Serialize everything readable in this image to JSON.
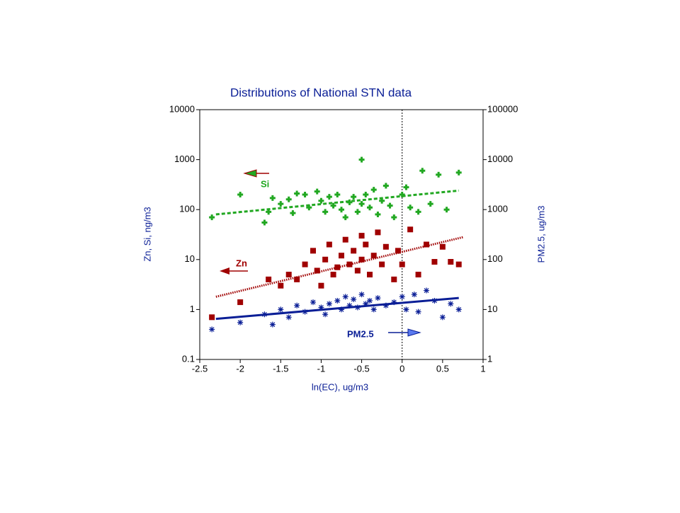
{
  "chart_data": {
    "type": "scatter",
    "title": "Distributions of National STN data",
    "x_label": "ln(EC), ug/m3",
    "y_label": "Zn, Si, ng/m3",
    "y2_label": "PM2.5, ug/m3",
    "xlim": [
      -2.5,
      1
    ],
    "xticks": [
      -2.5,
      -2,
      -1.5,
      -1,
      -0.5,
      0,
      0.5,
      1
    ],
    "ylim": [
      0.1,
      10000
    ],
    "yticks": [
      0.1,
      1,
      10,
      100,
      1000,
      10000
    ],
    "y_scale": "log",
    "y2lim": [
      1,
      100000
    ],
    "y2ticks": [
      1,
      10,
      100,
      1000,
      10000,
      100000
    ],
    "y2_scale": "log",
    "reference_line_x": 0,
    "series": [
      {
        "name": "Si",
        "color": "#22a822",
        "marker": "plus",
        "trend_style": "dashed",
        "x": [
          -2.35,
          -2,
          -1.7,
          -1.65,
          -1.6,
          -1.5,
          -1.4,
          -1.35,
          -1.3,
          -1.2,
          -1.15,
          -1.05,
          -1,
          -0.95,
          -0.9,
          -0.85,
          -0.8,
          -0.75,
          -0.7,
          -0.65,
          -0.6,
          -0.55,
          -0.5,
          -0.5,
          -0.45,
          -0.4,
          -0.35,
          -0.3,
          -0.25,
          -0.2,
          -0.15,
          -0.1,
          0,
          0.05,
          0.1,
          0.2,
          0.25,
          0.35,
          0.45,
          0.55,
          0.7
        ],
        "values": [
          70,
          200,
          55,
          90,
          170,
          130,
          160,
          85,
          210,
          200,
          110,
          230,
          150,
          90,
          180,
          120,
          200,
          100,
          70,
          140,
          180,
          90,
          1000,
          130,
          200,
          110,
          250,
          80,
          150,
          300,
          120,
          70,
          200,
          280,
          110,
          90,
          600,
          130,
          500,
          100,
          550
        ],
        "trend": {
          "x": [
            -2.3,
            0.7
          ],
          "values": [
            80,
            240
          ]
        }
      },
      {
        "name": "Zn",
        "color": "#a00000",
        "marker": "square",
        "trend_style": "dotted",
        "x": [
          -2.35,
          -2,
          -1.65,
          -1.5,
          -1.4,
          -1.3,
          -1.2,
          -1.1,
          -1.05,
          -1,
          -0.95,
          -0.9,
          -0.85,
          -0.8,
          -0.75,
          -0.7,
          -0.65,
          -0.6,
          -0.55,
          -0.5,
          -0.5,
          -0.45,
          -0.4,
          -0.35,
          -0.3,
          -0.25,
          -0.2,
          -0.1,
          -0.05,
          0,
          0.1,
          0.2,
          0.3,
          0.4,
          0.5,
          0.6,
          0.7
        ],
        "values": [
          0.7,
          1.4,
          4,
          3,
          5,
          4,
          8,
          15,
          6,
          3,
          10,
          20,
          5,
          7,
          12,
          25,
          8,
          15,
          6,
          30,
          10,
          20,
          5,
          12,
          35,
          8,
          18,
          4,
          15,
          8,
          40,
          5,
          20,
          9,
          18,
          9,
          8
        ],
        "trend": {
          "x": [
            -2.3,
            0.75
          ],
          "values": [
            1.8,
            28
          ]
        }
      },
      {
        "name": "PM2.5",
        "color": "#0a1e96",
        "marker": "star",
        "trend_style": "solid",
        "axis": "y2",
        "x": [
          -2.35,
          -2,
          -1.7,
          -1.6,
          -1.5,
          -1.4,
          -1.3,
          -1.2,
          -1.1,
          -1,
          -0.95,
          -0.9,
          -0.8,
          -0.75,
          -0.7,
          -0.65,
          -0.6,
          -0.55,
          -0.5,
          -0.45,
          -0.4,
          -0.35,
          -0.3,
          -0.2,
          -0.1,
          0,
          0.05,
          0.15,
          0.2,
          0.3,
          0.4,
          0.5,
          0.6,
          0.7
        ],
        "values": [
          4,
          5.5,
          8,
          5,
          10,
          7,
          12,
          9,
          14,
          11,
          8,
          13,
          15,
          10,
          18,
          12,
          16,
          11,
          20,
          13,
          15,
          10,
          17,
          12,
          14,
          18,
          10,
          20,
          9,
          24,
          15,
          7,
          13,
          10
        ],
        "trend": {
          "x": [
            -2.3,
            0.7
          ],
          "values": [
            6.5,
            17
          ]
        }
      }
    ]
  }
}
